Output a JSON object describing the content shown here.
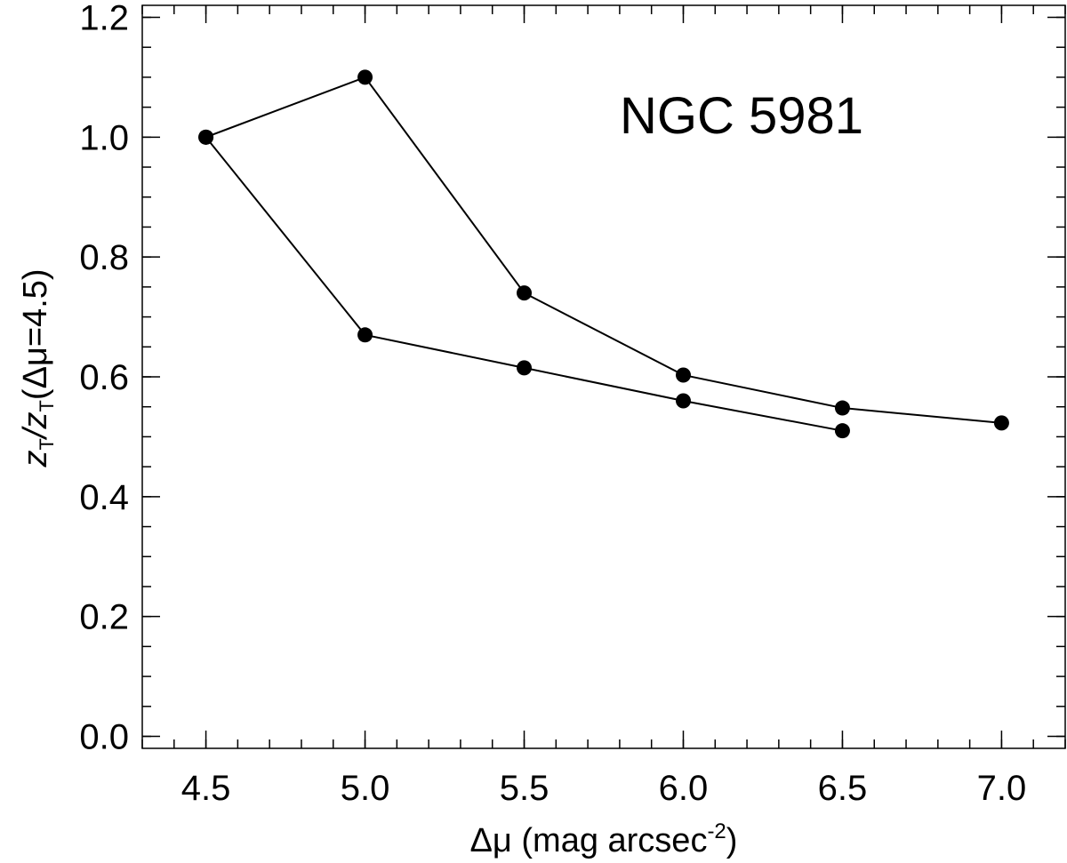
{
  "chart_data": {
    "type": "line",
    "title": "",
    "annotation": "NGC 5981",
    "xlabel": {
      "main": "Δμ (mag arcsec",
      "sup": "-2",
      "end": ")"
    },
    "ylabel": {
      "z1": "z",
      "t1": "T",
      "mid": "/z",
      "t2": "T",
      "end": "(Δμ=4.5)"
    },
    "xlim": [
      4.3,
      7.2
    ],
    "ylim": [
      -0.02,
      1.22
    ],
    "x_ticks": [
      {
        "value": 4.5,
        "label": "4.5"
      },
      {
        "value": 5.0,
        "label": "5.0"
      },
      {
        "value": 5.5,
        "label": "5.5"
      },
      {
        "value": 6.0,
        "label": "6.0"
      },
      {
        "value": 6.5,
        "label": "6.5"
      },
      {
        "value": 7.0,
        "label": "7.0"
      }
    ],
    "y_ticks": [
      {
        "value": 0.0,
        "label": "0.0"
      },
      {
        "value": 0.2,
        "label": "0.2"
      },
      {
        "value": 0.4,
        "label": "0.4"
      },
      {
        "value": 0.6,
        "label": "0.6"
      },
      {
        "value": 0.8,
        "label": "0.8"
      },
      {
        "value": 1.0,
        "label": "1.0"
      },
      {
        "value": 1.2,
        "label": "1.2"
      }
    ],
    "grid": false,
    "series": [
      {
        "x": [
          4.5,
          5.0,
          5.5,
          6.0,
          6.5
        ],
        "y": [
          1.0,
          0.67,
          0.615,
          0.56,
          0.51
        ]
      },
      {
        "x": [
          4.5,
          5.0,
          5.5,
          6.0,
          6.5,
          7.0
        ],
        "y": [
          1.0,
          1.1,
          0.74,
          0.603,
          0.548,
          0.523
        ]
      }
    ],
    "colors": {
      "line": "#000000",
      "marker": "#000000",
      "axes": "#000000"
    }
  }
}
